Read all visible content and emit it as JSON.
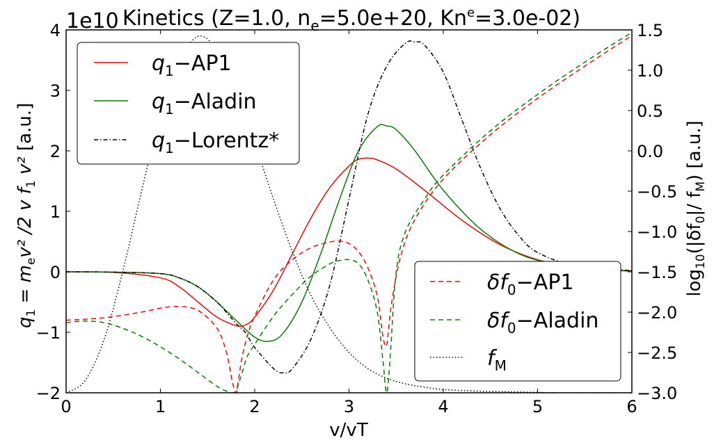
{
  "chart_data": {
    "type": "line",
    "title": "Kinetics (Z=1.0, n_e=5.0e+20, Kn^e=3.0e-02)",
    "title_parts": {
      "prefix": "Kinetics (Z=1.0, n",
      "ne_sub": "e",
      "ne_val": "=5.0e+20, Kn",
      "kn_sup": "e",
      "kn_val": "=3.0e-02)"
    },
    "xlabel": "v/vT",
    "ylabel_left": "q_1 = m_e v^2 /2 v f_1 v^2 [a.u.]",
    "ylabel_left_parts": {
      "base": "q",
      "sub1": "1",
      "rest": " = m",
      "sub_e": "e",
      "v2": "v²",
      "mid": " /2 v f",
      "sub1b": "1",
      "v2b": " v²",
      "units": " [a.u.]"
    },
    "ylabel_right": "log10(|δf0|/fM) [a.u.]",
    "ylabel_right_parts": {
      "base": "log",
      "sub10": "10",
      "rest1": "(|δf",
      "sub0": "0",
      "rest2": "|/ f",
      "subM": "M",
      "rest3": ")",
      "units": " [a.u.]"
    },
    "left_axis_offset": "1e10",
    "xlim": [
      0,
      6
    ],
    "ylim_left": [
      -2,
      4
    ],
    "ylim_right": [
      -3.0,
      1.5
    ],
    "x_ticks": [
      "0",
      "1",
      "2",
      "3",
      "4",
      "5",
      "6"
    ],
    "y_left_ticks": [
      "−2",
      "−1",
      "0",
      "1",
      "2",
      "3",
      "4"
    ],
    "y_right_ticks": [
      "−3.0",
      "−2.5",
      "−2.0",
      "−1.5",
      "−1.0",
      "−0.5",
      "0.0",
      "0.5",
      "1.0",
      "1.5"
    ],
    "legend_left": {
      "placement": "upper-left",
      "entries": [
        {
          "sym": "q",
          "sub": "1",
          "label": "−AP1",
          "color": "#ff0000",
          "dash": "solid"
        },
        {
          "sym": "q",
          "sub": "1",
          "label": "−Aladin",
          "color": "#008000",
          "dash": "solid"
        },
        {
          "sym": "q",
          "sub": "1",
          "label": "−Lorentz*",
          "color": "#000000",
          "dash": "dashdot"
        }
      ]
    },
    "legend_right": {
      "placement": "lower-right",
      "entries": [
        {
          "sym": "δf",
          "sub": "0",
          "label": "−AP1",
          "color": "#ff0000",
          "dash": "dashed"
        },
        {
          "sym": "δf",
          "sub": "0",
          "label": "−Aladin",
          "color": "#008000",
          "dash": "dashed"
        },
        {
          "sym": "f",
          "sub": "M",
          "label": "",
          "color": "#000000",
          "dash": "dotted"
        }
      ]
    },
    "series": [
      {
        "name": "q1 - AP1",
        "axis": "left",
        "color": "#ff0000",
        "dash": "solid",
        "x": [
          0,
          0.5,
          1.0,
          1.2,
          1.4,
          1.6,
          1.8,
          1.9,
          2.0,
          2.2,
          2.4,
          2.6,
          2.8,
          3.0,
          3.1,
          3.2,
          3.3,
          3.5,
          3.8,
          4.2,
          4.6,
          5.0,
          5.4,
          5.8,
          6.0
        ],
        "y": [
          0,
          -0.01,
          -0.1,
          -0.25,
          -0.5,
          -0.75,
          -0.89,
          -0.88,
          -0.75,
          -0.3,
          0.3,
          0.9,
          1.4,
          1.75,
          1.86,
          1.88,
          1.85,
          1.7,
          1.35,
          0.85,
          0.45,
          0.2,
          0.08,
          0.03,
          0.02
        ]
      },
      {
        "name": "q1 - Aladin",
        "axis": "left",
        "color": "#008000",
        "dash": "solid",
        "x": [
          0,
          0.5,
          1.0,
          1.2,
          1.4,
          1.6,
          1.8,
          2.0,
          2.15,
          2.3,
          2.5,
          2.7,
          2.9,
          3.1,
          3.3,
          3.4,
          3.5,
          3.7,
          4.0,
          4.4,
          4.8,
          5.2,
          5.6,
          6.0
        ],
        "y": [
          0,
          -0.005,
          -0.03,
          -0.1,
          -0.25,
          -0.5,
          -0.8,
          -1.08,
          -1.15,
          -1.02,
          -0.5,
          0.3,
          1.2,
          2.0,
          2.4,
          2.41,
          2.35,
          2.0,
          1.35,
          0.7,
          0.3,
          0.12,
          0.04,
          0.01
        ]
      },
      {
        "name": "q1 - Lorentz*",
        "axis": "left",
        "color": "#000000",
        "dash": "dashdot",
        "x": [
          0,
          0.5,
          1.0,
          1.2,
          1.4,
          1.6,
          1.8,
          1.9,
          2.0,
          2.2,
          2.3,
          2.4,
          2.6,
          2.8,
          3.0,
          3.2,
          3.4,
          3.6,
          3.7,
          3.8,
          4.0,
          4.2,
          4.4,
          4.6,
          4.8,
          5.0,
          5.4,
          6.0
        ],
        "y": [
          0,
          -0.005,
          -0.03,
          -0.1,
          -0.25,
          -0.5,
          -0.85,
          -1.0,
          -1.25,
          -1.6,
          -1.67,
          -1.6,
          -1.1,
          -0.2,
          1.2,
          2.6,
          3.4,
          3.78,
          3.8,
          3.75,
          3.3,
          2.5,
          1.7,
          1.05,
          0.6,
          0.32,
          0.1,
          0.02
        ]
      },
      {
        "name": "δf0 - AP1",
        "axis": "right",
        "color": "#ff0000",
        "dash": "dashed",
        "x": [
          0,
          0.4,
          0.8,
          1.0,
          1.2,
          1.4,
          1.6,
          1.7,
          1.76,
          1.8,
          1.82,
          1.86,
          1.92,
          2.0,
          2.2,
          2.4,
          2.6,
          2.8,
          2.9,
          3.0,
          3.1,
          3.2,
          3.3,
          3.36,
          3.4,
          3.45,
          3.55,
          3.7,
          4.0,
          4.5,
          5.0,
          5.5,
          6.0
        ],
        "y": [
          -2.1,
          -2.07,
          -2.0,
          -1.95,
          -1.93,
          -1.98,
          -2.2,
          -2.5,
          -2.85,
          -3.0,
          -2.9,
          -2.6,
          -2.3,
          -2.05,
          -1.6,
          -1.35,
          -1.2,
          -1.13,
          -1.12,
          -1.15,
          -1.25,
          -1.45,
          -1.8,
          -2.3,
          -2.4,
          -1.9,
          -1.3,
          -0.85,
          -0.35,
          0.2,
          0.65,
          1.05,
          1.43
        ]
      },
      {
        "name": "δf0 - Aladin",
        "axis": "right",
        "color": "#008000",
        "dash": "dashed",
        "x": [
          0,
          0.2,
          0.4,
          0.6,
          0.8,
          1.0,
          1.2,
          1.4,
          1.6,
          1.7,
          1.75,
          1.8,
          1.84,
          1.88,
          1.92,
          2.0,
          2.2,
          2.4,
          2.6,
          2.8,
          2.9,
          3.0,
          3.1,
          3.2,
          3.3,
          3.36,
          3.4,
          3.44,
          3.5,
          3.6,
          3.8,
          4.0,
          4.5,
          5.0,
          5.5,
          6.0
        ],
        "y": [
          -2.13,
          -2.11,
          -2.13,
          -2.2,
          -2.3,
          -2.43,
          -2.58,
          -2.75,
          -2.92,
          -2.98,
          -3.0,
          -2.98,
          -2.85,
          -2.7,
          -2.55,
          -2.4,
          -2.05,
          -1.78,
          -1.55,
          -1.4,
          -1.36,
          -1.35,
          -1.4,
          -1.6,
          -2.0,
          -2.6,
          -3.0,
          -2.5,
          -1.5,
          -1.0,
          -0.6,
          -0.3,
          0.25,
          0.7,
          1.1,
          1.47
        ]
      },
      {
        "name": "fM",
        "axis": "right",
        "color": "#000000",
        "dash": "dotted",
        "x": [
          0,
          0.2,
          0.4,
          0.6,
          0.8,
          1.0,
          1.2,
          1.4,
          1.6,
          1.8,
          2.0,
          2.2,
          2.4,
          2.6,
          2.8,
          3.0,
          3.2,
          3.4,
          3.6,
          3.8,
          4.0,
          4.4,
          4.8,
          5.2,
          5.6,
          6.0
        ],
        "y": [
          -3.0,
          -2.85,
          -2.35,
          -1.5,
          -0.5,
          0.45,
          1.1,
          1.42,
          1.25,
          0.75,
          0.1,
          -0.6,
          -1.25,
          -1.8,
          -2.2,
          -2.5,
          -2.7,
          -2.82,
          -2.89,
          -2.93,
          -2.96,
          -2.98,
          -2.99,
          -3.0,
          -3.0,
          -3.0
        ]
      }
    ]
  }
}
